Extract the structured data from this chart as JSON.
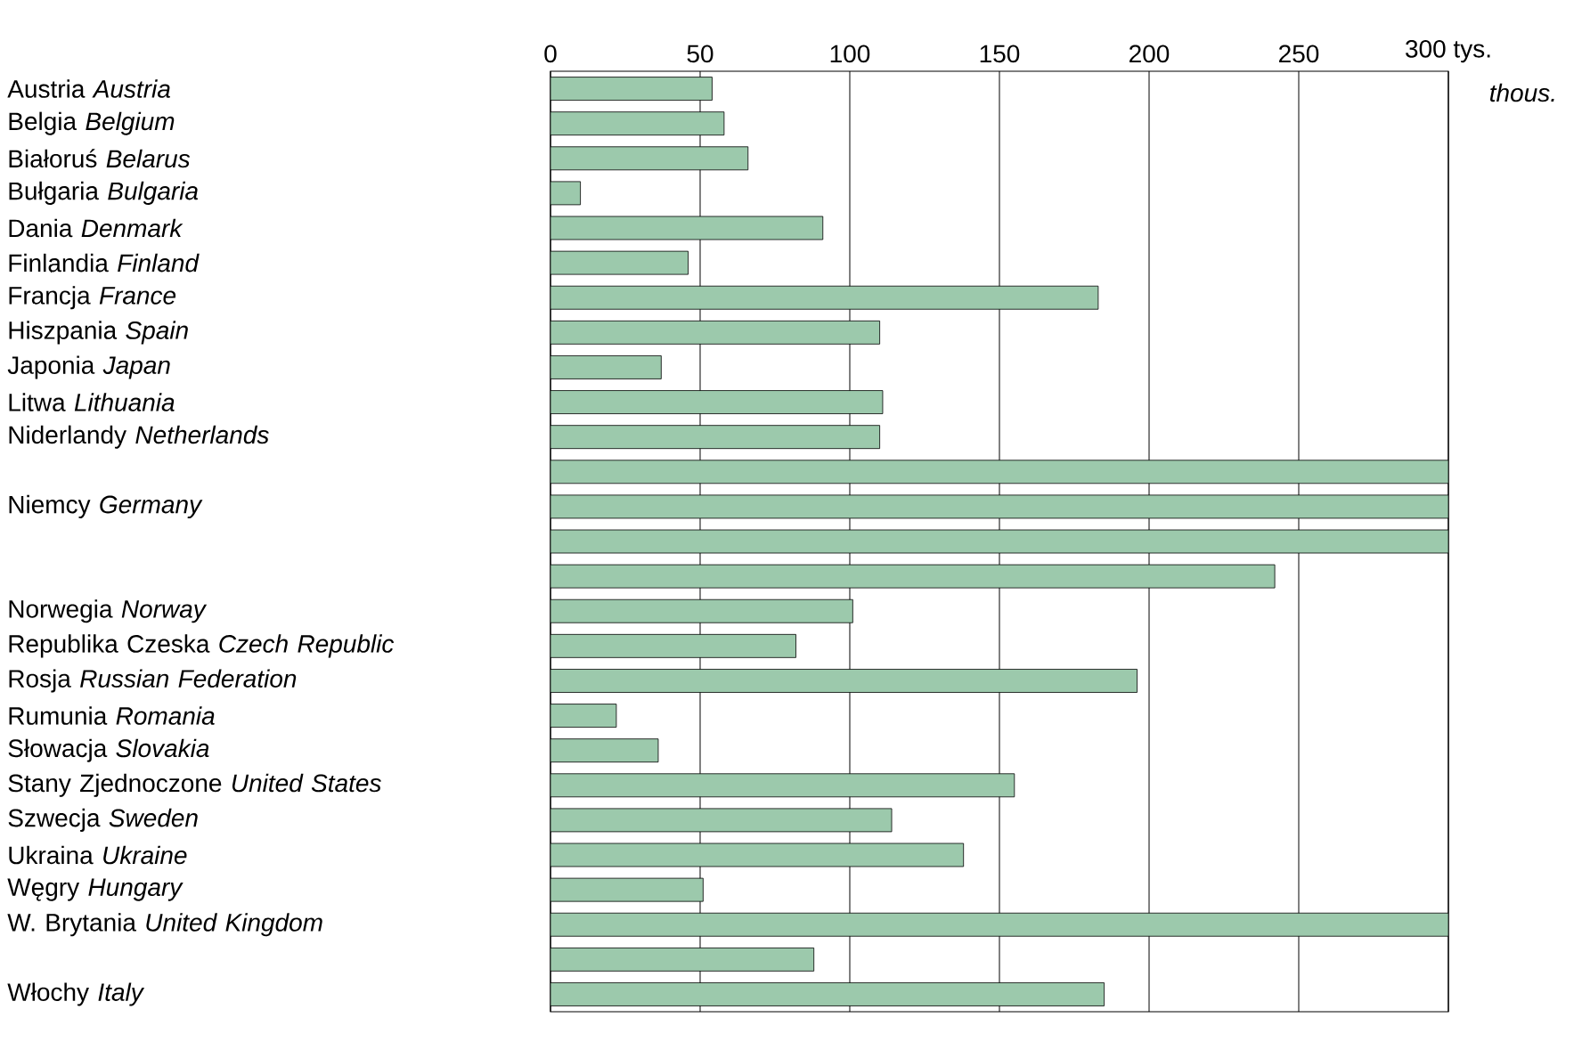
{
  "chart_data": {
    "type": "bar",
    "orientation": "horizontal",
    "xlabel": "thous.",
    "categories": [
      "Austria  *Austria*",
      "Belgia  *Belgium*",
      "Białoruś  *Belarus*",
      "Bułgaria  *Bulgaria*",
      "Dania  *Denmark*",
      "Finlandia  *Finland*",
      "Francja  *France*",
      "Hiszpania  *Spain*",
      "Japonia  *Japan*",
      "Litwa  *Lithuania*",
      "Niderlandy  *Netherlands*",
      null,
      "Niemcy  *Germany*",
      null,
      null,
      "Norwegia  *Norway*",
      "Republika Czeska  *Czech Republic*",
      "Rosja  *Russian Federation*",
      "Rumunia  *Romania*",
      "Słowacja  *Slovakia*",
      "Stany Zjednoczone  *United States*",
      "Szwecja  *Sweden*",
      "Ukraina  *Ukraine*",
      "Węgry  *Hungary*",
      "W. Brytania  *United Kingdom*",
      null,
      "Włochy  *Italy*"
    ],
    "values": [
      54,
      58,
      66,
      10,
      91,
      46,
      183,
      110,
      37,
      111,
      110,
      300,
      300,
      300,
      242,
      101,
      82,
      196,
      22,
      36,
      155,
      114,
      138,
      51,
      300,
      88,
      185
    ],
    "color": "#9cc9ac",
    "xlim": [
      0,
      300
    ],
    "xticks": [
      0,
      50,
      100,
      150,
      200,
      250,
      {
        "value": 300,
        "label": "300 tys."
      }
    ],
    "grid": "x"
  }
}
